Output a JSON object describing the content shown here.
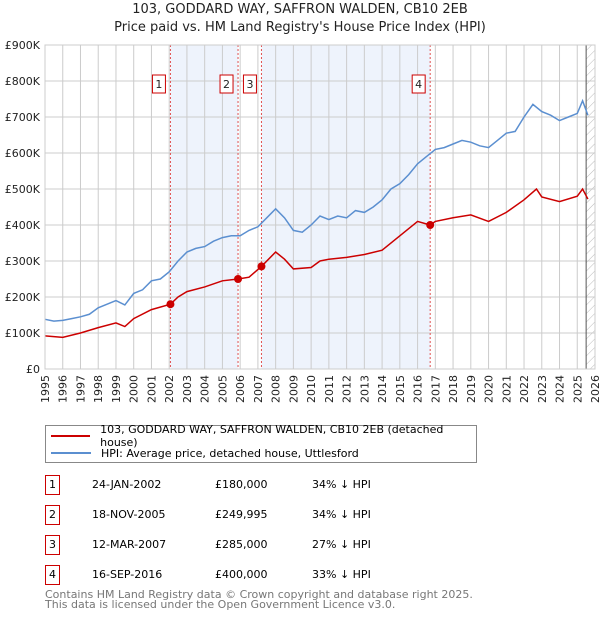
{
  "chart_data": {
    "type": "line",
    "title": "103, GODDARD WAY, SAFFRON WALDEN, CB10 2EB",
    "subtitle": "Price paid vs. HM Land Registry's House Price Index (HPI)",
    "xlim": [
      1995,
      2026
    ],
    "ylim": [
      0,
      900000
    ],
    "yticks": [
      0,
      100000,
      200000,
      300000,
      400000,
      500000,
      600000,
      700000,
      800000,
      900000
    ],
    "ytick_labels": [
      "£0",
      "£100K",
      "£200K",
      "£300K",
      "£400K",
      "£500K",
      "£600K",
      "£700K",
      "£800K",
      "£900K"
    ],
    "xticks": [
      "1995",
      "1996",
      "1997",
      "1998",
      "1999",
      "2000",
      "2001",
      "2002",
      "2003",
      "2004",
      "2005",
      "2006",
      "2007",
      "2008",
      "2009",
      "2010",
      "2011",
      "2012",
      "2013",
      "2014",
      "2015",
      "2016",
      "2017",
      "2018",
      "2019",
      "2020",
      "2021",
      "2022",
      "2023",
      "2024",
      "2025",
      "2026"
    ],
    "grid": true,
    "series": [
      {
        "name": "103, GODDARD WAY, SAFFRON WALDEN, CB10 2EB (detached house)",
        "color": "#cc0000",
        "x": [
          1995,
          1996,
          1997,
          1998,
          1999,
          1999.5,
          2000,
          2001,
          2002.07,
          2002.5,
          2003,
          2004,
          2005,
          2005.88,
          2006.5,
          2007.2,
          2008,
          2008.5,
          2009,
          2010,
          2010.5,
          2011,
          2012,
          2013,
          2014,
          2015,
          2016,
          2016.71,
          2017,
          2018,
          2019,
          2020,
          2021,
          2022,
          2022.7,
          2023,
          2024,
          2025,
          2025.3,
          2025.6
        ],
        "y": [
          92000,
          88000,
          100000,
          115000,
          128000,
          118000,
          140000,
          165000,
          180000,
          200000,
          215000,
          228000,
          245000,
          249995,
          255000,
          285000,
          325000,
          305000,
          278000,
          282000,
          300000,
          305000,
          310000,
          318000,
          330000,
          370000,
          410000,
          400000,
          410000,
          420000,
          428000,
          410000,
          435000,
          470000,
          500000,
          478000,
          465000,
          480000,
          500000,
          472000
        ]
      },
      {
        "name": "HPI: Average price, detached house, Uttlesford",
        "color": "#5b8fd0",
        "x": [
          1995,
          1995.5,
          1996,
          1996.5,
          1997,
          1997.5,
          1998,
          1998.5,
          1999,
          1999.5,
          2000,
          2000.5,
          2001,
          2001.5,
          2002,
          2002.5,
          2003,
          2003.5,
          2004,
          2004.5,
          2005,
          2005.5,
          2006,
          2006.5,
          2007,
          2007.5,
          2008,
          2008.5,
          2009,
          2009.5,
          2010,
          2010.5,
          2011,
          2011.5,
          2012,
          2012.5,
          2013,
          2013.5,
          2014,
          2014.5,
          2015,
          2015.5,
          2016,
          2016.5,
          2017,
          2017.5,
          2018,
          2018.5,
          2019,
          2019.5,
          2020,
          2020.5,
          2021,
          2021.5,
          2022,
          2022.5,
          2023,
          2023.5,
          2024,
          2024.5,
          2025,
          2025.3,
          2025.6
        ],
        "y": [
          138000,
          133000,
          135000,
          140000,
          145000,
          152000,
          170000,
          180000,
          190000,
          178000,
          210000,
          220000,
          245000,
          250000,
          270000,
          300000,
          325000,
          335000,
          340000,
          355000,
          365000,
          370000,
          370000,
          385000,
          395000,
          420000,
          445000,
          420000,
          385000,
          380000,
          400000,
          425000,
          415000,
          425000,
          420000,
          440000,
          435000,
          450000,
          470000,
          500000,
          515000,
          540000,
          570000,
          590000,
          610000,
          615000,
          625000,
          635000,
          630000,
          620000,
          615000,
          635000,
          655000,
          660000,
          700000,
          735000,
          715000,
          705000,
          690000,
          700000,
          710000,
          745000,
          705000
        ]
      }
    ],
    "transactions": [
      {
        "id": "1",
        "x": 2002.07,
        "date": "24-JAN-2002",
        "price": "£180,000",
        "value": 180000,
        "hpi": "34% ↓ HPI"
      },
      {
        "id": "2",
        "x": 2005.88,
        "date": "18-NOV-2005",
        "price": "£249,995",
        "value": 249995,
        "hpi": "34% ↓ HPI"
      },
      {
        "id": "3",
        "x": 2007.2,
        "date": "12-MAR-2007",
        "price": "£285,000",
        "value": 285000,
        "hpi": "27% ↓ HPI"
      },
      {
        "id": "4",
        "x": 2016.71,
        "date": "16-SEP-2016",
        "price": "£400,000",
        "value": 400000,
        "hpi": "33% ↓ HPI"
      }
    ],
    "shaded_ranges": [
      [
        2002.07,
        2005.88
      ],
      [
        2007.2,
        2016.71
      ]
    ],
    "hatched_from": 2025.5,
    "legend_placement": "bottom"
  },
  "footer": {
    "line1": "Contains HM Land Registry data © Crown copyright and database right 2025.",
    "line2": "This data is licensed under the Open Government Licence v3.0."
  }
}
